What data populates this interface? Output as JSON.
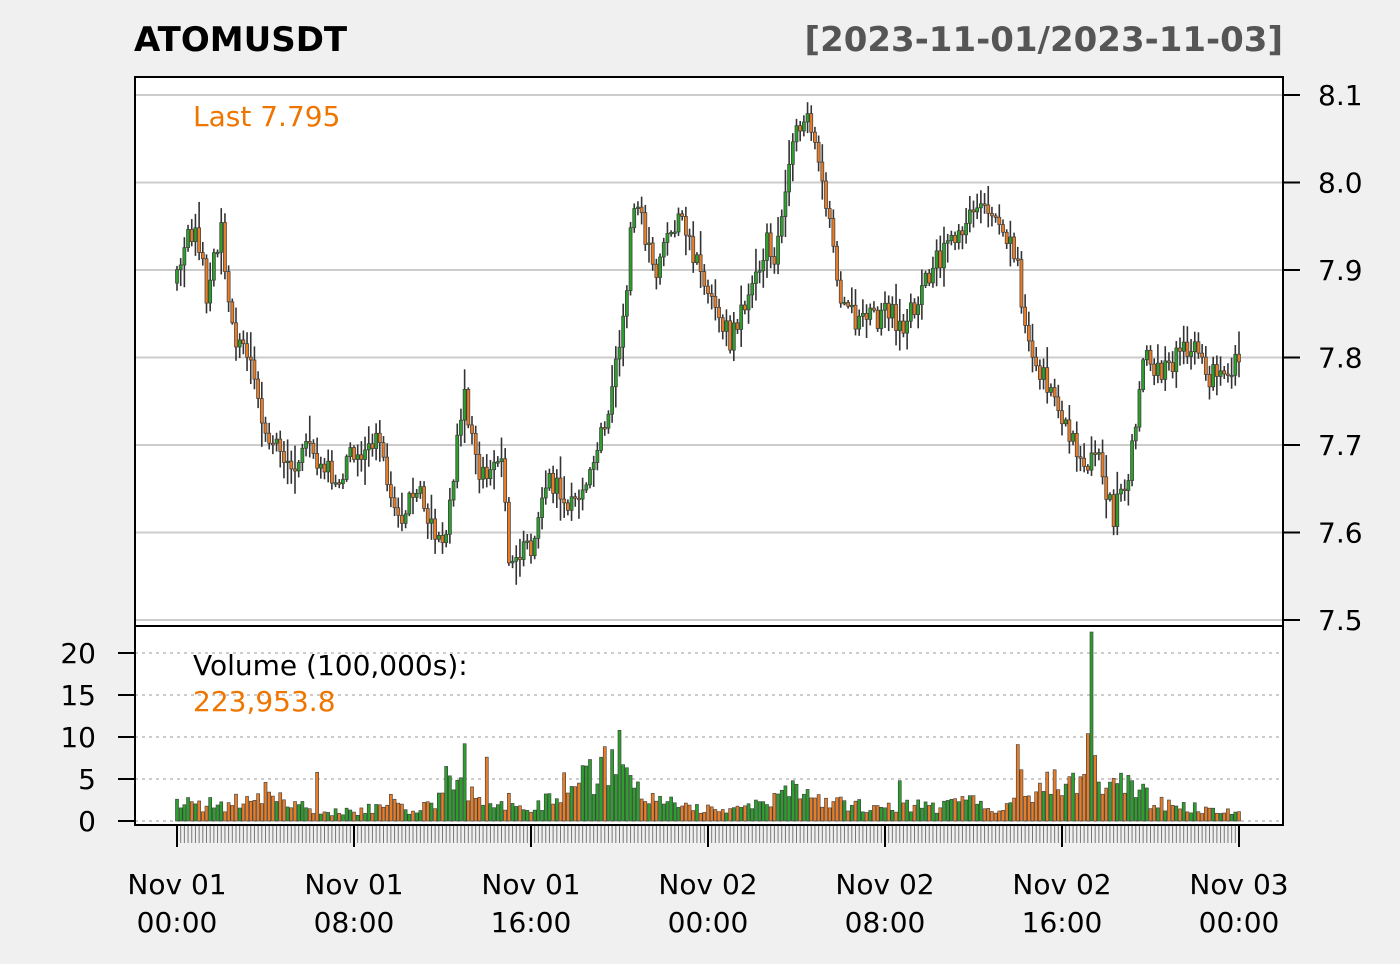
{
  "chart_data": {
    "type": "candlestick",
    "title": "ATOMUSDT",
    "date_range": "[2023-11-01/2023-11-03]",
    "price_axis": {
      "ticks": [
        7.5,
        7.6,
        7.7,
        7.8,
        7.9,
        8.0,
        8.1
      ],
      "tick_labels": [
        "7.5",
        "7.6",
        "7.7",
        "7.8",
        "7.9",
        "8.0",
        "8.1"
      ],
      "ylim": [
        7.5,
        8.1
      ]
    },
    "volume_axis": {
      "ticks": [
        0,
        5,
        10,
        15,
        20
      ],
      "tick_labels": [
        "0",
        "5",
        "10",
        "15",
        "20"
      ],
      "ylim": [
        0,
        23
      ]
    },
    "x_axis": {
      "tick_labels": [
        {
          "line1": "Nov 01",
          "line2": "00:00",
          "bar_index": 0
        },
        {
          "line1": "Nov 01",
          "line2": "08:00",
          "bar_index": 48
        },
        {
          "line1": "Nov 01",
          "line2": "16:00",
          "bar_index": 96
        },
        {
          "line1": "Nov 02",
          "line2": "00:00",
          "bar_index": 144
        },
        {
          "line1": "Nov 02",
          "line2": "08:00",
          "bar_index": 192
        },
        {
          "line1": "Nov 02",
          "line2": "16:00",
          "bar_index": 240
        },
        {
          "line1": "Nov 03",
          "line2": "00:00",
          "bar_index": 288
        }
      ]
    },
    "last_label": "Last 7.795",
    "volume_label": "Volume (100,000s):",
    "volume_value": "223,953.8",
    "grid": true,
    "colors": {
      "up": "#2ca02c",
      "down": "#e87d28",
      "last": "#ee7600",
      "wick": "#333333",
      "grid": "#cccccc"
    },
    "close_anchors": [
      [
        0,
        7.89
      ],
      [
        5,
        7.96
      ],
      [
        8,
        7.87
      ],
      [
        12,
        7.94
      ],
      [
        16,
        7.81
      ],
      [
        20,
        7.8
      ],
      [
        24,
        7.72
      ],
      [
        30,
        7.67
      ],
      [
        36,
        7.7
      ],
      [
        42,
        7.66
      ],
      [
        48,
        7.69
      ],
      [
        54,
        7.71
      ],
      [
        60,
        7.62
      ],
      [
        66,
        7.64
      ],
      [
        72,
        7.58
      ],
      [
        78,
        7.76
      ],
      [
        82,
        7.66
      ],
      [
        88,
        7.69
      ],
      [
        90,
        7.58
      ],
      [
        96,
        7.58
      ],
      [
        100,
        7.66
      ],
      [
        108,
        7.63
      ],
      [
        114,
        7.7
      ],
      [
        120,
        7.8
      ],
      [
        124,
        7.98
      ],
      [
        130,
        7.9
      ],
      [
        136,
        7.96
      ],
      [
        142,
        7.9
      ],
      [
        150,
        7.82
      ],
      [
        156,
        7.88
      ],
      [
        160,
        7.94
      ],
      [
        162,
        7.91
      ],
      [
        168,
        8.06
      ],
      [
        172,
        8.07
      ],
      [
        176,
        7.98
      ],
      [
        180,
        7.85
      ],
      [
        186,
        7.84
      ],
      [
        192,
        7.85
      ],
      [
        198,
        7.84
      ],
      [
        204,
        7.9
      ],
      [
        210,
        7.93
      ],
      [
        216,
        7.97
      ],
      [
        222,
        7.97
      ],
      [
        228,
        7.9
      ],
      [
        232,
        7.79
      ],
      [
        238,
        7.76
      ],
      [
        244,
        7.69
      ],
      [
        250,
        7.68
      ],
      [
        254,
        7.62
      ],
      [
        258,
        7.66
      ],
      [
        262,
        7.8
      ],
      [
        266,
        7.78
      ],
      [
        270,
        7.79
      ],
      [
        275,
        7.82
      ],
      [
        280,
        7.78
      ],
      [
        284,
        7.78
      ],
      [
        288,
        7.795
      ]
    ],
    "volume_anchors": [
      [
        0,
        2.6
      ],
      [
        10,
        1.5
      ],
      [
        20,
        2.8
      ],
      [
        28,
        3.0
      ],
      [
        34,
        1.7
      ],
      [
        40,
        1.1
      ],
      [
        50,
        1.2
      ],
      [
        58,
        2.2
      ],
      [
        64,
        1.3
      ],
      [
        70,
        2.1
      ],
      [
        76,
        5.9
      ],
      [
        80,
        3.0
      ],
      [
        84,
        1.5
      ],
      [
        90,
        2.3
      ],
      [
        96,
        1.1
      ],
      [
        104,
        3.8
      ],
      [
        112,
        5.3
      ],
      [
        118,
        6.8
      ],
      [
        124,
        3.6
      ],
      [
        132,
        2.7
      ],
      [
        140,
        1.5
      ],
      [
        150,
        1.6
      ],
      [
        160,
        2.5
      ],
      [
        166,
        3.6
      ],
      [
        176,
        1.9
      ],
      [
        184,
        2.2
      ],
      [
        190,
        1.3
      ],
      [
        198,
        1.9
      ],
      [
        206,
        1.5
      ],
      [
        214,
        2.3
      ],
      [
        222,
        1.5
      ],
      [
        230,
        2.4
      ],
      [
        236,
        4.2
      ],
      [
        242,
        3.9
      ],
      [
        250,
        4.2
      ],
      [
        256,
        4.2
      ],
      [
        260,
        3.5
      ],
      [
        266,
        2.2
      ],
      [
        274,
        1.8
      ],
      [
        280,
        1.1
      ],
      [
        288,
        1.0
      ]
    ],
    "volume_spikes": [
      [
        9,
        2.8
      ],
      [
        24,
        4.6
      ],
      [
        38,
        5.8
      ],
      [
        73,
        6.5
      ],
      [
        78,
        9.2
      ],
      [
        84,
        7.6
      ],
      [
        110,
        6.6
      ],
      [
        118,
        8.5
      ],
      [
        120,
        10.8
      ],
      [
        196,
        4.8
      ],
      [
        228,
        9.1
      ],
      [
        229,
        6.1
      ],
      [
        238,
        6.1
      ],
      [
        247,
        10.4
      ],
      [
        248,
        22.5
      ],
      [
        249,
        7.8
      ]
    ]
  }
}
